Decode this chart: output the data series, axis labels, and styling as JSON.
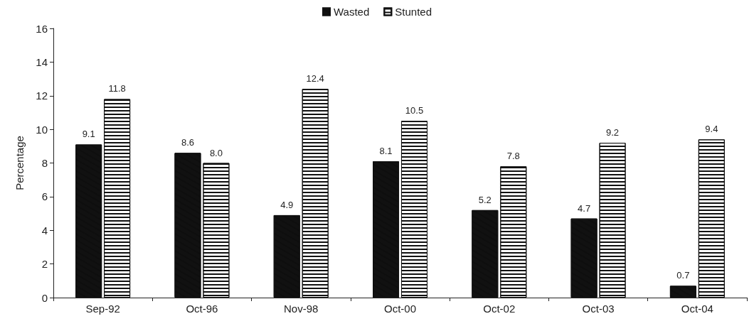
{
  "chart_data": {
    "type": "bar",
    "ylabel": "Percentage",
    "categories": [
      "Sep-92",
      "Oct-96",
      "Nov-98",
      "Oct-00",
      "Oct-02",
      "Oct-03",
      "Oct-04"
    ],
    "series": [
      {
        "name": "Wasted",
        "color": "#111111",
        "values": [
          9.1,
          8.6,
          4.9,
          8.1,
          5.2,
          4.7,
          0.7
        ],
        "value_labels": [
          "9.1",
          "8.6",
          "4.9",
          "8.1",
          "5.2",
          "4.7",
          "0.7"
        ]
      },
      {
        "name": "Stunted",
        "color": "#ffffff",
        "values": [
          11.8,
          8.0,
          12.4,
          10.5,
          7.8,
          9.2,
          9.4
        ],
        "value_labels": [
          "11.8",
          "8.0",
          "12.4",
          "10.5",
          "7.8",
          "9.2",
          "9.4"
        ]
      }
    ],
    "ylim": [
      0,
      16
    ],
    "yticks": [
      0,
      2,
      4,
      6,
      8,
      10,
      12,
      14,
      16
    ],
    "grid": false,
    "legend": "top"
  }
}
